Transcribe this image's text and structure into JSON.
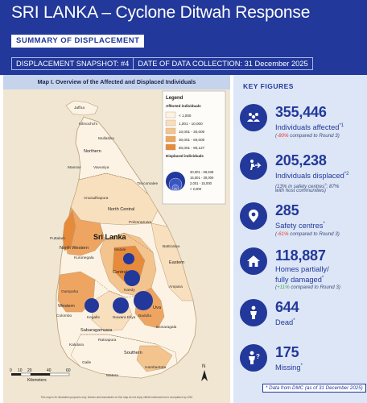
{
  "header": {
    "title": "SRI LANKA – Cyclone Ditwah Response",
    "subtitle": "SUMMARY OF DISPLACEMENT",
    "snapshot": "DISPLACEMENT SNAPSHOT: #4",
    "collection_date": "DATE OF DATA COLLECTION: 31 December 2025"
  },
  "map": {
    "title": "Map I. Overview of the Affected and Displaced Individuals",
    "country": "Sri Lanka",
    "legend": {
      "title": "Legend",
      "affected_title": "Affected individuals",
      "affected_classes": [
        {
          "label": "< 1,000",
          "color": "#fdf3e4"
        },
        {
          "label": "1,001 - 10,000",
          "color": "#f8dfbd"
        },
        {
          "label": "10,001 - 30,000",
          "color": "#f4c48e"
        },
        {
          "label": "30,001 - 60,000",
          "color": "#eea562"
        },
        {
          "label": "60,001 - 90,127",
          "color": "#e68a3c"
        }
      ],
      "displaced_title": "Displaced individuals",
      "displaced_classes": [
        "30,001 - 69,539",
        "15,001 - 30,000",
        "2,001 - 15,000",
        "< 2,000"
      ]
    },
    "labels": {
      "jaffna": "Jaffna",
      "kilinochchi": "Kilinochchi",
      "mullaitivu": "Mullaitivu",
      "northern": "Northern",
      "mannar": "Mannar",
      "vavuniya": "Vavuniya",
      "trincomalee": "Trincomalee",
      "anuradhapura": "Anuradhapura",
      "north_central": "North Central",
      "polonnaruwa": "Polonnaruwa",
      "puttalam": "Puttalam",
      "north_western": "North Western",
      "kurunegala": "Kurunegala",
      "batticaloa": "Batticaloa",
      "eastern": "Eastern",
      "matale": "Matale",
      "central": "Central",
      "kandy": "Kandy",
      "ampara": "Ampara",
      "gampaha": "Gampaha",
      "western": "Western",
      "colombo": "Colombo",
      "kegalle": "Kegalle",
      "nuwara_eliya": "Nuwara Eliya",
      "badulla": "Badulla",
      "uva": "Uva",
      "monaragala": "Monaragala",
      "sabaragamuwa": "Sabaragamuwa",
      "kalutara": "Kalutara",
      "ratnapura": "Ratnapura",
      "galle": "Galle",
      "southern": "Southern",
      "hambantota": "Hambantota",
      "matara": "Matara"
    },
    "scale_ticks": [
      "0",
      "10",
      "20",
      "40",
      "60"
    ],
    "scale_unit": "Kilometers",
    "north": "N",
    "disclaimer": "This map is for illustration purposes only. Names and boundaries on this map do not imply official endorsement or acceptance by IOM."
  },
  "key_figures": {
    "title": "KEY FIGURES",
    "affected": {
      "value": "355,446",
      "label": "Individuals affected",
      "sup": "*1",
      "change": "-80%",
      "change_rest": " compared to Round 3)"
    },
    "displaced": {
      "value": "205,238",
      "label": "Individuals displaced",
      "sup": "*2",
      "detail1": "(13% in safety centres",
      "detail1_sup": "3",
      "detail1_rest": "; 87%",
      "detail2": "with host communities)"
    },
    "safety": {
      "value": "285",
      "label": "Safety centres",
      "sup": "*",
      "change": "-61%",
      "change_rest": " compared to Round 3)"
    },
    "homes": {
      "value": "118,887",
      "label1": "Homes partially/",
      "label2": "fully damaged",
      "sup": "*",
      "change": "+11%",
      "change_rest": " compared to Round 3)"
    },
    "dead": {
      "value": "644",
      "label": "Dead",
      "sup": "*"
    },
    "missing": {
      "value": "175",
      "label": "Missing",
      "sup": "*"
    },
    "footnote": "* Data from DMC (as of 31 December 2025)"
  },
  "colors": {
    "brand_blue": "#22389a",
    "light_panel": "#dde6f6",
    "map_header": "#c5d4ec",
    "negative": "#e03b3b",
    "positive": "#3ba84a"
  }
}
